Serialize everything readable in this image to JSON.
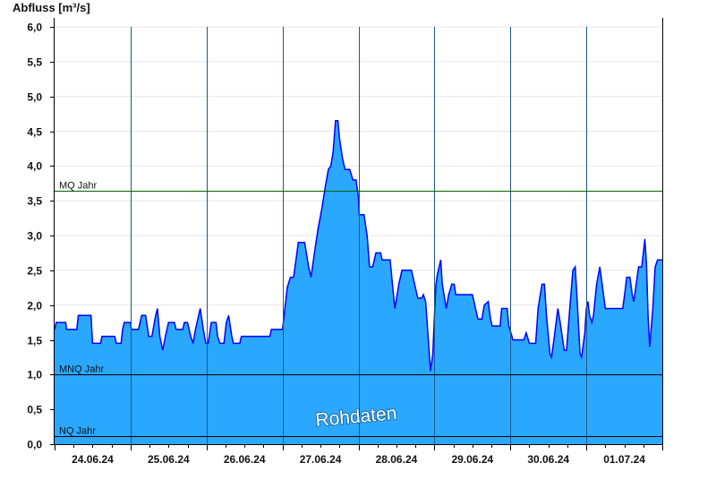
{
  "chart_data": {
    "type": "area",
    "title": "",
    "ylabel": "Abfluss [m³/s]",
    "xlabel": "",
    "ylim": [
      0,
      6.0
    ],
    "yticks": [
      "0,0",
      "0,5",
      "1,0",
      "1,5",
      "2,0",
      "2,5",
      "3,0",
      "3,5",
      "4,0",
      "4,5",
      "5,0",
      "5,5",
      "6,0"
    ],
    "ytick_values": [
      0,
      0.5,
      1,
      1.5,
      2,
      2.5,
      3,
      3.5,
      4,
      4.5,
      5,
      5.5,
      6
    ],
    "xticks": [
      "24.06.24",
      "25.06.24",
      "26.06.24",
      "27.06.24",
      "28.06.24",
      "29.06.24",
      "30.06.24",
      "01.07.24"
    ],
    "grid": true,
    "colors": {
      "fill": "#2aa8ff",
      "line": "#0000ff",
      "mq_line": "#006400",
      "ref_line": "#000000",
      "day_line": "#1c5a86"
    },
    "reference_lines": [
      {
        "label": "MQ Jahr",
        "value": 3.64
      },
      {
        "label": "MNQ Jahr",
        "value": 1.0
      },
      {
        "label": "NQ Jahr",
        "value": 0.11
      }
    ],
    "watermark": "Rohdaten",
    "series": [
      {
        "date": "24.06.24",
        "points": [
          [
            "00:00",
            1.65
          ],
          [
            "00:30",
            1.75
          ],
          [
            "03:30",
            1.75
          ],
          [
            "03:45",
            1.65
          ],
          [
            "07:00",
            1.65
          ],
          [
            "07:30",
            1.85
          ],
          [
            "11:30",
            1.85
          ],
          [
            "12:00",
            1.45
          ],
          [
            "14:30",
            1.45
          ],
          [
            "15:00",
            1.55
          ],
          [
            "19:00",
            1.55
          ],
          [
            "19:30",
            1.45
          ],
          [
            "21:00",
            1.45
          ],
          [
            "21:30",
            1.65
          ],
          [
            "22:00",
            1.75
          ]
        ]
      },
      {
        "date": "25.06.24",
        "points": [
          [
            "00:00",
            1.75
          ],
          [
            "00:15",
            1.65
          ],
          [
            "02:30",
            1.65
          ],
          [
            "03:30",
            1.85
          ],
          [
            "04:45",
            1.85
          ],
          [
            "05:45",
            1.55
          ],
          [
            "06:45",
            1.55
          ],
          [
            "07:55",
            1.85
          ],
          [
            "08:30",
            1.95
          ],
          [
            "09:15",
            1.55
          ],
          [
            "10:10",
            1.35
          ],
          [
            "11:00",
            1.55
          ],
          [
            "12:00",
            1.75
          ],
          [
            "13:50",
            1.75
          ],
          [
            "14:24",
            1.65
          ],
          [
            "16:30",
            1.65
          ],
          [
            "17:00",
            1.75
          ],
          [
            "18:00",
            1.75
          ],
          [
            "19:00",
            1.55
          ],
          [
            "19:45",
            1.45
          ],
          [
            "20:30",
            1.65
          ],
          [
            "22:00",
            1.95
          ],
          [
            "23:00",
            1.65
          ],
          [
            "23:45",
            1.45
          ]
        ]
      },
      {
        "date": "26.06.24",
        "points": [
          [
            "00:30",
            1.45
          ],
          [
            "01:30",
            1.75
          ],
          [
            "03:00",
            1.75
          ],
          [
            "03:30",
            1.55
          ],
          [
            "04:15",
            1.45
          ],
          [
            "05:30",
            1.45
          ],
          [
            "06:15",
            1.75
          ],
          [
            "07:00",
            1.85
          ],
          [
            "08:00",
            1.55
          ],
          [
            "08:30",
            1.45
          ],
          [
            "10:30",
            1.45
          ],
          [
            "11:00",
            1.55
          ],
          [
            "20:00",
            1.55
          ],
          [
            "20:30",
            1.65
          ]
        ]
      },
      {
        "date": "27.06.24",
        "points": [
          [
            "00:00",
            1.65
          ],
          [
            "00:30",
            1.85
          ],
          [
            "01:30",
            2.25
          ],
          [
            "02:30",
            2.4
          ],
          [
            "03:30",
            2.4
          ],
          [
            "04:15",
            2.65
          ],
          [
            "05:00",
            2.9
          ],
          [
            "07:00",
            2.9
          ],
          [
            "08:15",
            2.55
          ],
          [
            "09:00",
            2.4
          ],
          [
            "10:15",
            2.8
          ],
          [
            "11:15",
            3.1
          ],
          [
            "12:30",
            3.4
          ],
          [
            "13:30",
            3.7
          ],
          [
            "14:30",
            3.95
          ],
          [
            "15:15",
            4.0
          ],
          [
            "16:00",
            4.2
          ],
          [
            "16:45",
            4.65
          ],
          [
            "17:30",
            4.65
          ],
          [
            "18:00",
            4.4
          ],
          [
            "19:00",
            4.1
          ],
          [
            "19:45",
            3.95
          ],
          [
            "21:15",
            3.95
          ],
          [
            "22:15",
            3.8
          ],
          [
            "23:15",
            3.8
          ]
        ]
      },
      {
        "date": "28.06.24",
        "points": [
          [
            "00:00",
            3.55
          ],
          [
            "00:15",
            3.3
          ],
          [
            "01:45",
            3.3
          ],
          [
            "02:45",
            3.0
          ],
          [
            "03:30",
            2.55
          ],
          [
            "04:30",
            2.55
          ],
          [
            "05:30",
            2.75
          ],
          [
            "07:00",
            2.75
          ],
          [
            "07:30",
            2.65
          ],
          [
            "10:00",
            2.65
          ],
          [
            "10:45",
            2.3
          ],
          [
            "11:30",
            1.95
          ],
          [
            "12:45",
            2.3
          ],
          [
            "13:45",
            2.5
          ],
          [
            "16:45",
            2.5
          ],
          [
            "17:30",
            2.35
          ],
          [
            "18:45",
            2.1
          ],
          [
            "20:00",
            2.1
          ],
          [
            "20:30",
            2.15
          ],
          [
            "21:15",
            2.05
          ],
          [
            "22:00",
            1.55
          ],
          [
            "22:45",
            1.05
          ],
          [
            "23:30",
            1.3
          ]
        ]
      },
      {
        "date": "29.06.24",
        "points": [
          [
            "00:00",
            1.85
          ],
          [
            "00:30",
            2.3
          ],
          [
            "01:00",
            2.45
          ],
          [
            "02:00",
            2.65
          ],
          [
            "02:30",
            2.3
          ],
          [
            "03:45",
            1.95
          ],
          [
            "04:30",
            2.15
          ],
          [
            "05:30",
            2.3
          ],
          [
            "06:15",
            2.3
          ],
          [
            "06:45",
            2.15
          ],
          [
            "12:00",
            2.15
          ],
          [
            "13:00",
            1.95
          ],
          [
            "13:45",
            1.8
          ],
          [
            "15:00",
            1.8
          ],
          [
            "15:45",
            2.0
          ],
          [
            "17:00",
            2.05
          ],
          [
            "17:45",
            1.8
          ],
          [
            "18:15",
            1.7
          ],
          [
            "20:45",
            1.7
          ],
          [
            "21:15",
            1.95
          ],
          [
            "23:00",
            1.95
          ],
          [
            "23:30",
            1.7
          ]
        ]
      },
      {
        "date": "30.06.24",
        "points": [
          [
            "00:30",
            1.55
          ],
          [
            "00:45",
            1.5
          ],
          [
            "04:15",
            1.5
          ],
          [
            "05:00",
            1.6
          ],
          [
            "06:00",
            1.45
          ],
          [
            "08:00",
            1.45
          ],
          [
            "08:45",
            1.95
          ],
          [
            "10:00",
            2.3
          ],
          [
            "10:45",
            2.3
          ],
          [
            "11:30",
            1.8
          ],
          [
            "12:30",
            1.3
          ],
          [
            "13:00",
            1.25
          ],
          [
            "13:45",
            1.5
          ],
          [
            "15:00",
            1.95
          ],
          [
            "15:45",
            1.75
          ],
          [
            "17:00",
            1.35
          ],
          [
            "17:45",
            1.35
          ],
          [
            "18:45",
            1.95
          ],
          [
            "19:45",
            2.5
          ],
          [
            "20:30",
            2.55
          ],
          [
            "21:15",
            1.95
          ],
          [
            "22:00",
            1.3
          ],
          [
            "22:30",
            1.25
          ],
          [
            "23:30",
            1.6
          ]
        ]
      },
      {
        "date": "01.07.24",
        "points": [
          [
            "00:00",
            1.95
          ],
          [
            "00:30",
            2.05
          ],
          [
            "01:00",
            1.85
          ],
          [
            "01:45",
            1.75
          ],
          [
            "02:15",
            1.85
          ],
          [
            "03:15",
            2.3
          ],
          [
            "04:15",
            2.55
          ],
          [
            "05:00",
            2.3
          ],
          [
            "06:00",
            1.95
          ],
          [
            "11:30",
            1.95
          ],
          [
            "12:15",
            2.2
          ],
          [
            "12:45",
            2.4
          ],
          [
            "13:45",
            2.4
          ],
          [
            "14:30",
            2.15
          ],
          [
            "15:00",
            2.05
          ],
          [
            "15:45",
            2.3
          ],
          [
            "16:30",
            2.55
          ],
          [
            "17:30",
            2.55
          ],
          [
            "18:00",
            2.75
          ],
          [
            "18:30",
            2.95
          ],
          [
            "19:00",
            2.6
          ],
          [
            "19:30",
            1.85
          ],
          [
            "20:00",
            1.4
          ],
          [
            "21:00",
            1.95
          ],
          [
            "21:45",
            2.55
          ],
          [
            "22:30",
            2.65
          ],
          [
            "23:45",
            2.65
          ]
        ]
      }
    ]
  }
}
